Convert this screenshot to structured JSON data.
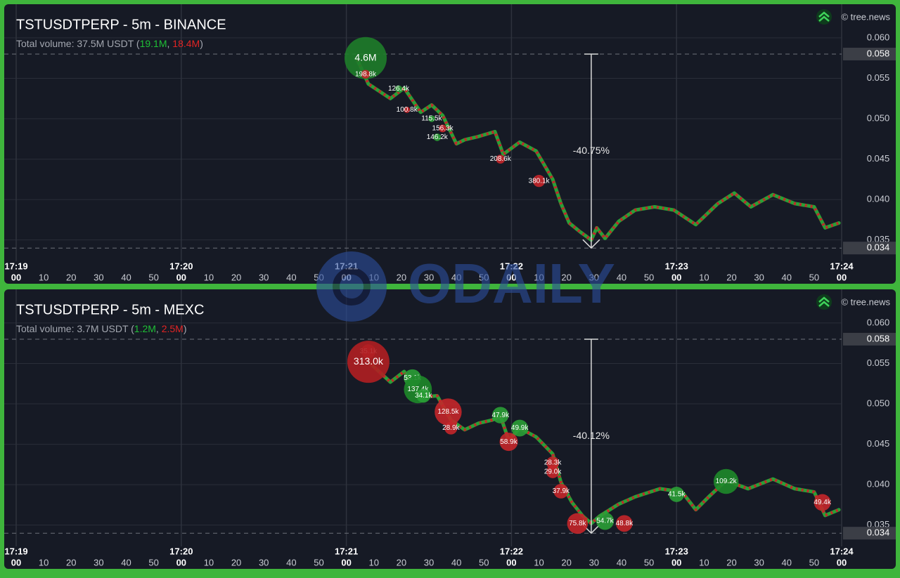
{
  "watermark": "ODAILY",
  "chart_data": [
    {
      "type": "line",
      "title": "TSTUSDTPERP - 5m - BINANCE",
      "volume_parts": [
        {
          "text": "Total volume: 37.5M USDT (",
          "color": "#a3a7b0"
        },
        {
          "text": "19.1M",
          "color": "#1fbf36"
        },
        {
          "text": ", ",
          "color": "#a3a7b0"
        },
        {
          "text": "18.4M",
          "color": "#e02424"
        },
        {
          "text": ")",
          "color": "#a3a7b0"
        }
      ],
      "source": "© tree.news",
      "x": [
        "17:21:04",
        "17:21:08",
        "17:21:16",
        "17:21:21",
        "17:21:27",
        "17:21:31",
        "17:21:35",
        "17:21:40",
        "17:21:43",
        "17:21:48",
        "17:21:54",
        "17:21:57",
        "17:22:03",
        "17:22:09",
        "17:22:15",
        "17:22:18",
        "17:22:21",
        "17:22:25",
        "17:22:29",
        "17:22:31",
        "17:22:34",
        "17:22:39",
        "17:22:45",
        "17:22:52",
        "17:22:59",
        "17:23:07",
        "17:23:15",
        "17:23:21",
        "17:23:27",
        "17:23:35",
        "17:23:43",
        "17:23:50",
        "17:23:54",
        "17:23:59"
      ],
      "values": [
        0.0573,
        0.0543,
        0.0525,
        0.0538,
        0.0508,
        0.0517,
        0.0504,
        0.0469,
        0.0474,
        0.0478,
        0.0484,
        0.0456,
        0.0471,
        0.046,
        0.0425,
        0.0395,
        0.0371,
        0.036,
        0.035,
        0.0365,
        0.0352,
        0.0373,
        0.0387,
        0.0391,
        0.0387,
        0.0369,
        0.0395,
        0.0408,
        0.0391,
        0.0406,
        0.0395,
        0.0391,
        0.0365,
        0.0371
      ],
      "color": "#2a9f36",
      "alt_color": "#c4262a",
      "xlim": [
        "17:19:00",
        "17:24:00"
      ],
      "xticks": [
        {
          "value": "17:19:00",
          "label": "00"
        },
        {
          "value": "17:19:10",
          "label": "10"
        },
        {
          "value": "17:19:20",
          "label": "20"
        },
        {
          "value": "17:19:30",
          "label": "30"
        },
        {
          "value": "17:19:40",
          "label": "40"
        },
        {
          "value": "17:19:50",
          "label": "50"
        },
        {
          "value": "17:20:00",
          "label": "00"
        },
        {
          "value": "17:20:10",
          "label": "10"
        },
        {
          "value": "17:20:20",
          "label": "20"
        },
        {
          "value": "17:20:30",
          "label": "30"
        },
        {
          "value": "17:20:40",
          "label": "40"
        },
        {
          "value": "17:20:50",
          "label": "50"
        },
        {
          "value": "17:21:00",
          "label": "00"
        },
        {
          "value": "17:21:10",
          "label": "10"
        },
        {
          "value": "17:21:20",
          "label": "20"
        },
        {
          "value": "17:21:30",
          "label": "30"
        },
        {
          "value": "17:21:40",
          "label": "40"
        },
        {
          "value": "17:21:50",
          "label": "50"
        },
        {
          "value": "17:22:00",
          "label": "00"
        },
        {
          "value": "17:22:10",
          "label": "10"
        },
        {
          "value": "17:22:20",
          "label": "20"
        },
        {
          "value": "17:22:30",
          "label": "30"
        },
        {
          "value": "17:22:40",
          "label": "40"
        },
        {
          "value": "17:22:50",
          "label": "50"
        },
        {
          "value": "17:23:00",
          "label": "00"
        },
        {
          "value": "17:23:10",
          "label": "10"
        },
        {
          "value": "17:23:20",
          "label": "20"
        },
        {
          "value": "17:23:30",
          "label": "30"
        },
        {
          "value": "17:23:40",
          "label": "40"
        },
        {
          "value": "17:23:50",
          "label": "50"
        },
        {
          "value": "17:24:00",
          "label": "00"
        }
      ],
      "minute_labels": [
        {
          "value": "17:19:00",
          "label": "17:19"
        },
        {
          "value": "17:20:00",
          "label": "17:20"
        },
        {
          "value": "17:21:00",
          "label": "17:21"
        },
        {
          "value": "17:22:00",
          "label": "17:22"
        },
        {
          "value": "17:23:00",
          "label": "17:23"
        },
        {
          "value": "17:24:00",
          "label": "17:24"
        }
      ],
      "ylim": [
        0.0328,
        0.0636
      ],
      "yticks": [
        {
          "value": 0.06,
          "label": "0.060"
        },
        0.055,
        {
          "value": 0.05,
          "label": "0.050"
        },
        0.045,
        {
          "value": 0.04,
          "label": "0.040"
        },
        0.035
      ],
      "grid": true,
      "price_marks": [
        0.058,
        0.034
      ],
      "drop": {
        "x": "17:22:29",
        "from": 0.058,
        "to": 0.034,
        "label": "-40.75%"
      },
      "bubbles": {
        "x": [
          "17:21:07",
          "17:21:07",
          "17:21:19",
          "17:21:22",
          "17:21:31",
          "17:21:35",
          "17:21:33",
          "17:21:56",
          "17:22:10"
        ],
        "y": [
          0.0575,
          0.0555,
          0.0537,
          0.0511,
          0.05,
          0.0488,
          0.0477,
          0.045,
          0.0423
        ],
        "values": [
          4600000,
          198800,
          126400,
          100800,
          115500,
          156300,
          146200,
          208600,
          380100
        ],
        "value_labels": [
          "4.6M",
          "198.8k",
          "126.4k",
          "100.8k",
          "115.5k",
          "156.3k",
          "146.2k",
          "208.6k",
          "380.1k"
        ],
        "colors": [
          "#1e7d2a",
          "#c4262a",
          "#2a9f36",
          "#c4262a",
          "#2a9f36",
          "#c4262a",
          "#2a9f36",
          "#c4262a",
          "#c4262a"
        ]
      }
    },
    {
      "type": "line",
      "title": "TSTUSDTPERP - 5m - MEXC",
      "volume_parts": [
        {
          "text": "Total volume: 3.7M USDT (",
          "color": "#a3a7b0"
        },
        {
          "text": "1.2M",
          "color": "#1fbf36"
        },
        {
          "text": ", ",
          "color": "#a3a7b0"
        },
        {
          "text": "2.5M",
          "color": "#e02424"
        },
        {
          "text": ")",
          "color": "#a3a7b0"
        }
      ],
      "source": "© tree.news",
      "x": [
        "17:21:09",
        "17:21:16",
        "17:21:21",
        "17:21:27",
        "17:21:33",
        "17:21:38",
        "17:21:43",
        "17:21:48",
        "17:21:53",
        "17:21:56",
        "17:21:59",
        "17:22:03",
        "17:22:09",
        "17:22:15",
        "17:22:18",
        "17:22:22",
        "17:22:26",
        "17:22:29",
        "17:22:32",
        "17:22:39",
        "17:22:45",
        "17:22:54",
        "17:23:02",
        "17:23:07",
        "17:23:12",
        "17:23:18",
        "17:23:26",
        "17:23:35",
        "17:23:43",
        "17:23:50",
        "17:23:54",
        "17:23:59"
      ],
      "values": [
        0.0549,
        0.0527,
        0.054,
        0.0508,
        0.051,
        0.048,
        0.0468,
        0.0476,
        0.048,
        0.0485,
        0.0455,
        0.047,
        0.0459,
        0.0438,
        0.0403,
        0.0378,
        0.0361,
        0.0352,
        0.0361,
        0.0376,
        0.0385,
        0.0395,
        0.0391,
        0.0369,
        0.0386,
        0.0405,
        0.0395,
        0.0407,
        0.0395,
        0.0391,
        0.0362,
        0.0369
      ],
      "color": "#2a9f36",
      "alt_color": "#c4262a",
      "xlim": [
        "17:19:00",
        "17:24:00"
      ],
      "xticks": [
        {
          "value": "17:19:00",
          "label": "00"
        },
        {
          "value": "17:19:10",
          "label": "10"
        },
        {
          "value": "17:19:20",
          "label": "20"
        },
        {
          "value": "17:19:30",
          "label": "30"
        },
        {
          "value": "17:19:40",
          "label": "40"
        },
        {
          "value": "17:19:50",
          "label": "50"
        },
        {
          "value": "17:20:00",
          "label": "00"
        },
        {
          "value": "17:20:10",
          "label": "10"
        },
        {
          "value": "17:20:20",
          "label": "20"
        },
        {
          "value": "17:20:30",
          "label": "30"
        },
        {
          "value": "17:20:40",
          "label": "40"
        },
        {
          "value": "17:20:50",
          "label": "50"
        },
        {
          "value": "17:21:00",
          "label": "00"
        },
        {
          "value": "17:21:10",
          "label": "10"
        },
        {
          "value": "17:21:20",
          "label": "20"
        },
        {
          "value": "17:21:30",
          "label": "30"
        },
        {
          "value": "17:21:40",
          "label": "40"
        },
        {
          "value": "17:21:50",
          "label": "50"
        },
        {
          "value": "17:22:00",
          "label": "00"
        },
        {
          "value": "17:22:10",
          "label": "10"
        },
        {
          "value": "17:22:20",
          "label": "20"
        },
        {
          "value": "17:22:30",
          "label": "30"
        },
        {
          "value": "17:22:40",
          "label": "40"
        },
        {
          "value": "17:22:50",
          "label": "50"
        },
        {
          "value": "17:23:00",
          "label": "00"
        },
        {
          "value": "17:23:10",
          "label": "10"
        },
        {
          "value": "17:23:20",
          "label": "20"
        },
        {
          "value": "17:23:30",
          "label": "30"
        },
        {
          "value": "17:23:40",
          "label": "40"
        },
        {
          "value": "17:23:50",
          "label": "50"
        },
        {
          "value": "17:24:00",
          "label": "00"
        }
      ],
      "minute_labels": [
        {
          "value": "17:19:00",
          "label": "17:19"
        },
        {
          "value": "17:20:00",
          "label": "17:20"
        },
        {
          "value": "17:21:00",
          "label": "17:21"
        },
        {
          "value": "17:22:00",
          "label": "17:22"
        },
        {
          "value": "17:23:00",
          "label": "17:23"
        },
        {
          "value": "17:24:00",
          "label": "17:24"
        }
      ],
      "ylim": [
        0.0328,
        0.0636
      ],
      "yticks": [
        {
          "value": 0.06,
          "label": "0.060"
        },
        0.055,
        {
          "value": 0.05,
          "label": "0.050"
        },
        0.045,
        {
          "value": 0.04,
          "label": "0.040"
        },
        0.035
      ],
      "grid": true,
      "price_marks": [
        0.058,
        0.034
      ],
      "drop": {
        "x": "17:22:29",
        "from": 0.058,
        "to": 0.034,
        "label": "-40.12%"
      },
      "bubbles": {
        "x": [
          "17:21:08",
          "17:21:08",
          "17:21:24",
          "17:21:26",
          "17:21:28",
          "17:21:37",
          "17:21:38",
          "17:21:56",
          "17:22:03",
          "17:21:59",
          "17:22:15",
          "17:22:15",
          "17:22:18",
          "17:22:24",
          "17:22:34",
          "17:22:41",
          "17:23:00",
          "17:23:18",
          "17:23:53"
        ],
        "y": [
          0.0565,
          0.0552,
          0.0532,
          0.0518,
          0.051,
          0.049,
          0.047,
          0.0486,
          0.047,
          0.0453,
          0.0427,
          0.0416,
          0.0392,
          0.0352,
          0.0355,
          0.0352,
          0.0388,
          0.0404,
          0.0378
        ],
        "values": [
          35100,
          313000,
          53100,
          137400,
          34100,
          128500,
          28900,
          47900,
          49900,
          58900,
          28300,
          29000,
          37900,
          75800,
          54700,
          48800,
          41500,
          109200,
          49400
        ],
        "value_labels": [
          "35.1k",
          "313.0k",
          "53.1k",
          "137.4k",
          "34.1k",
          "128.5k",
          "28.9k",
          "47.9k",
          "49.9k",
          "58.9k",
          "28.3k",
          "29.0k",
          "37.9k",
          "75.8k",
          "54.7k",
          "48.8k",
          "41.5k",
          "109.2k",
          "49.4k"
        ],
        "colors": [
          "#c4262a",
          "#b01f22",
          "#2a9f36",
          "#1e8a2a",
          "#2a9f36",
          "#c4262a",
          "#c4262a",
          "#2a9f36",
          "#2a9f36",
          "#c4262a",
          "#c4262a",
          "#c4262a",
          "#c4262a",
          "#c4262a",
          "#2a9f36",
          "#c4262a",
          "#2a9f36",
          "#1e8a2a",
          "#c4262a"
        ]
      }
    }
  ]
}
